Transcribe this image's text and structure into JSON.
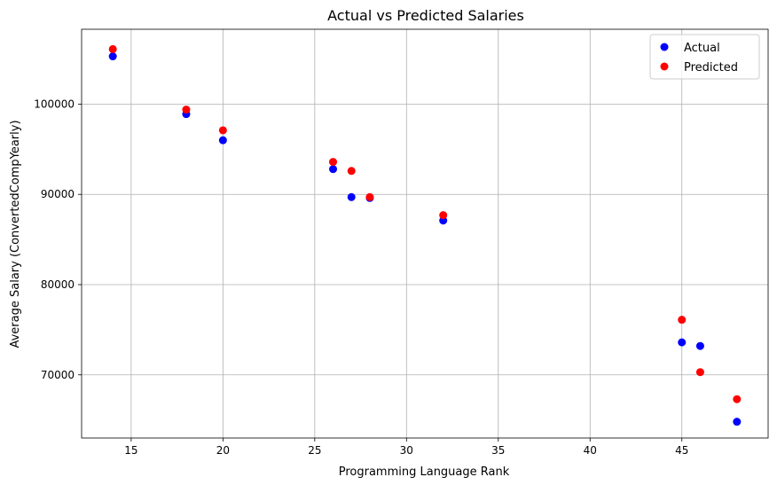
{
  "chart_data": {
    "type": "scatter",
    "title": "Actual vs Predicted Salaries",
    "xlabel": "Programming Language Rank",
    "ylabel": "Average Salary (ConvertedCompYearly)",
    "xlim": [
      12.3,
      49.7
    ],
    "ylim": [
      63000,
      108300
    ],
    "x_ticks": [
      15,
      20,
      25,
      30,
      35,
      40,
      45
    ],
    "y_ticks": [
      70000,
      80000,
      90000,
      100000
    ],
    "grid": true,
    "legend_position": "top-right",
    "series": [
      {
        "name": "Actual",
        "color": "#0000ff",
        "points": [
          {
            "x": 14,
            "y": 105300
          },
          {
            "x": 18,
            "y": 98900
          },
          {
            "x": 20,
            "y": 96000
          },
          {
            "x": 26,
            "y": 92800
          },
          {
            "x": 27,
            "y": 89700
          },
          {
            "x": 28,
            "y": 89600
          },
          {
            "x": 32,
            "y": 87100
          },
          {
            "x": 45,
            "y": 73600
          },
          {
            "x": 46,
            "y": 73200
          },
          {
            "x": 48,
            "y": 64800
          }
        ]
      },
      {
        "name": "Predicted",
        "color": "#ff0000",
        "points": [
          {
            "x": 14,
            "y": 106100
          },
          {
            "x": 18,
            "y": 99400
          },
          {
            "x": 20,
            "y": 97100
          },
          {
            "x": 26,
            "y": 93600
          },
          {
            "x": 27,
            "y": 92600
          },
          {
            "x": 28,
            "y": 89700
          },
          {
            "x": 32,
            "y": 87700
          },
          {
            "x": 45,
            "y": 76100
          },
          {
            "x": 46,
            "y": 70300
          },
          {
            "x": 48,
            "y": 67300
          }
        ]
      }
    ]
  }
}
